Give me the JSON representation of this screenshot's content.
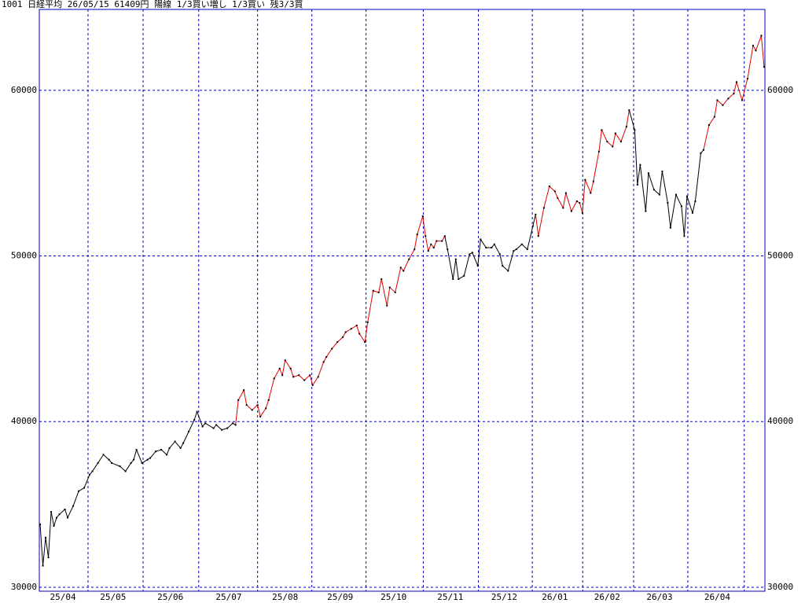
{
  "chart_data": {
    "type": "line",
    "title": "1001 日経平均 26/05/15 61409円 陽線 1/3買い増し 1/3買い 残3/3買",
    "ylim": [
      29760,
      64880
    ],
    "yticks": [
      30000,
      40000,
      50000,
      60000
    ],
    "xlim": [
      -0.3,
      263.3
    ],
    "xticks": [
      {
        "value": 8.3,
        "label": "25/04"
      },
      {
        "value": 26.5,
        "label": "25/05"
      },
      {
        "value": 47.3,
        "label": "25/06"
      },
      {
        "value": 68.5,
        "label": "25/07"
      },
      {
        "value": 89,
        "label": "25/08"
      },
      {
        "value": 109,
        "label": "25/09"
      },
      {
        "value": 128.4,
        "label": "25/10"
      },
      {
        "value": 149,
        "label": "25/11"
      },
      {
        "value": 168.6,
        "label": "25/12"
      },
      {
        "value": 187,
        "label": "26/01"
      },
      {
        "value": 206,
        "label": "26/02"
      },
      {
        "value": 225,
        "label": "26/03"
      },
      {
        "value": 246,
        "label": "26/04"
      }
    ],
    "xgrid": [
      17.4,
      37.4,
      57.6,
      79,
      98.7,
      118.4,
      139.2,
      159.2,
      178.8,
      197.1,
      215.6,
      235.3,
      255.8
    ],
    "grid": true,
    "grid_color": "#0000c0",
    "marker_color": "#000000",
    "x": [
      0,
      1,
      2,
      3,
      4,
      5,
      6,
      7,
      9,
      10,
      12,
      14,
      16,
      18,
      19,
      21,
      23,
      25,
      26,
      29,
      31,
      33,
      34,
      35,
      37,
      39,
      40,
      42,
      44,
      46,
      47,
      49,
      51,
      52,
      54,
      56,
      57,
      59,
      60,
      63,
      64,
      66,
      68,
      70,
      71,
      72,
      74,
      75,
      77,
      79,
      80,
      82,
      83,
      85,
      87,
      88,
      89,
      91,
      92,
      94,
      96,
      98,
      99,
      101,
      103,
      104,
      106,
      108,
      110,
      111,
      113,
      115,
      116,
      118,
      119,
      121,
      123,
      124,
      126,
      127,
      129,
      131,
      132,
      134,
      136,
      137,
      139,
      140,
      141,
      142,
      143,
      144,
      146,
      147,
      148,
      150,
      151,
      152,
      154,
      156,
      157,
      159,
      160,
      162,
      164,
      165,
      167,
      168,
      170,
      172,
      173,
      175,
      177,
      179,
      180,
      181,
      183,
      185,
      187,
      188,
      190,
      191,
      193,
      195,
      196,
      197,
      198,
      200,
      201,
      203,
      204,
      206,
      208,
      209,
      211,
      213,
      214,
      216,
      217,
      218,
      220,
      221,
      223,
      225,
      226,
      228,
      229,
      231,
      233,
      234,
      235,
      237,
      238,
      240,
      241,
      243,
      245,
      246,
      248,
      250,
      252,
      253,
      255,
      257,
      259,
      260,
      262,
      263
    ],
    "values": [
      33800,
      31300,
      33000,
      31800,
      34550,
      33700,
      34200,
      34400,
      34700,
      34200,
      34900,
      35800,
      36000,
      36800,
      37000,
      37500,
      38000,
      37700,
      37500,
      37300,
      37000,
      37500,
      37700,
      38300,
      37500,
      37700,
      37800,
      38200,
      38300,
      38000,
      38400,
      38800,
      38400,
      38700,
      39400,
      40100,
      40600,
      39700,
      39900,
      39600,
      39800,
      39500,
      39600,
      39900,
      39800,
      41300,
      41900,
      41000,
      40700,
      41000,
      40300,
      40800,
      41300,
      42600,
      43200,
      42800,
      43700,
      43200,
      42700,
      42800,
      42500,
      42800,
      42200,
      42700,
      43600,
      43900,
      44400,
      44800,
      45100,
      45400,
      45600,
      45800,
      45300,
      44800,
      46000,
      47900,
      47800,
      48600,
      47000,
      48100,
      47800,
      49300,
      49100,
      49800,
      50400,
      51300,
      52400,
      51200,
      50300,
      50700,
      50500,
      50900,
      50900,
      51200,
      50400,
      48600,
      49800,
      48600,
      48800,
      50100,
      50200,
      49400,
      51000,
      50500,
      50500,
      50700,
      50100,
      49400,
      49100,
      50300,
      50400,
      50700,
      50400,
      51800,
      52500,
      51200,
      52900,
      54200,
      53900,
      53500,
      52900,
      53800,
      52700,
      53300,
      53200,
      52600,
      54600,
      53800,
      54500,
      56300,
      57600,
      56900,
      56600,
      57400,
      56900,
      57800,
      58800,
      57600,
      54300,
      55500,
      52700,
      55000,
      54000,
      53700,
      55100,
      53200,
      51700,
      53700,
      53000,
      51200,
      53600,
      52600,
      53300,
      56200,
      56400,
      57900,
      58400,
      59400,
      59100,
      59500,
      59800,
      60500,
      59400,
      60700,
      62700,
      62400,
      63300,
      61409
    ],
    "colors": [
      "#000000",
      "#000000",
      "#000000",
      "#000000",
      "#000000",
      "#000000",
      "#000000",
      "#000000",
      "#000000",
      "#000000",
      "#000000",
      "#000000",
      "#000000",
      "#000000",
      "#000000",
      "#000000",
      "#000000",
      "#000000",
      "#000000",
      "#000000",
      "#000000",
      "#000000",
      "#000000",
      "#000000",
      "#000000",
      "#000000",
      "#000000",
      "#000000",
      "#000000",
      "#000000",
      "#000000",
      "#000000",
      "#000000",
      "#000000",
      "#000000",
      "#000000",
      "#000000",
      "#000000",
      "#000000",
      "#000000",
      "#000000",
      "#000000",
      "#000000",
      "#000000",
      "#000000",
      "#e00000",
      "#e00000",
      "#e00000",
      "#e00000",
      "#e00000",
      "#e00000",
      "#e00000",
      "#e00000",
      "#e00000",
      "#e00000",
      "#e00000",
      "#e00000",
      "#e00000",
      "#e00000",
      "#e00000",
      "#e00000",
      "#e00000",
      "#e00000",
      "#e00000",
      "#e00000",
      "#e00000",
      "#e00000",
      "#e00000",
      "#e00000",
      "#e00000",
      "#e00000",
      "#e00000",
      "#e00000",
      "#e00000",
      "#e00000",
      "#e00000",
      "#e00000",
      "#e00000",
      "#e00000",
      "#e00000",
      "#e00000",
      "#e00000",
      "#e00000",
      "#e00000",
      "#e00000",
      "#e00000",
      "#e00000",
      "#e00000",
      "#e00000",
      "#e00000",
      "#e00000",
      "#e00000",
      "#e00000",
      "#e00000",
      "#000000",
      "#000000",
      "#000000",
      "#000000",
      "#000000",
      "#000000",
      "#000000",
      "#000000",
      "#000000",
      "#000000",
      "#000000",
      "#000000",
      "#000000",
      "#000000",
      "#000000",
      "#000000",
      "#000000",
      "#000000",
      "#000000",
      "#000000",
      "#000000",
      "#e00000",
      "#e00000",
      "#e00000",
      "#e00000",
      "#e00000",
      "#e00000",
      "#e00000",
      "#e00000",
      "#e00000",
      "#e00000",
      "#e00000",
      "#e00000",
      "#e00000",
      "#e00000",
      "#e00000",
      "#e00000",
      "#e00000",
      "#e00000",
      "#e00000",
      "#e00000",
      "#e00000",
      "#e00000",
      "#000000",
      "#000000",
      "#000000",
      "#000000",
      "#000000",
      "#000000",
      "#000000",
      "#000000",
      "#000000",
      "#000000",
      "#000000",
      "#000000",
      "#000000",
      "#000000",
      "#000000",
      "#000000",
      "#000000",
      "#000000",
      "#e00000",
      "#e00000",
      "#e00000",
      "#e00000",
      "#e00000",
      "#e00000",
      "#e00000",
      "#e00000",
      "#e00000",
      "#e00000",
      "#e00000",
      "#e00000",
      "#e00000"
    ]
  }
}
